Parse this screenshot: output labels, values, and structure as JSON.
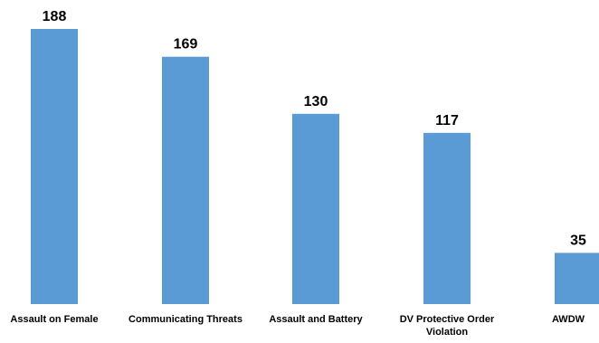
{
  "chart_data": {
    "type": "bar",
    "title": "",
    "xlabel": "",
    "ylabel": "",
    "categories": [
      "Assault on Female",
      "Communicating Threats",
      "Assault and Battery",
      "DV Protective Order Violation",
      "AWDW"
    ],
    "category_lines": [
      [
        "Assault on Female"
      ],
      [
        "Communicating Threats"
      ],
      [
        "Assault and Battery"
      ],
      [
        "DV Protective Order",
        "Violation"
      ],
      [
        "AWDW"
      ]
    ],
    "values": [
      188,
      169,
      130,
      117,
      35
    ],
    "ylim": [
      0,
      188
    ],
    "grid": false,
    "legend": "none",
    "bar_color": "#5b9bd5"
  }
}
